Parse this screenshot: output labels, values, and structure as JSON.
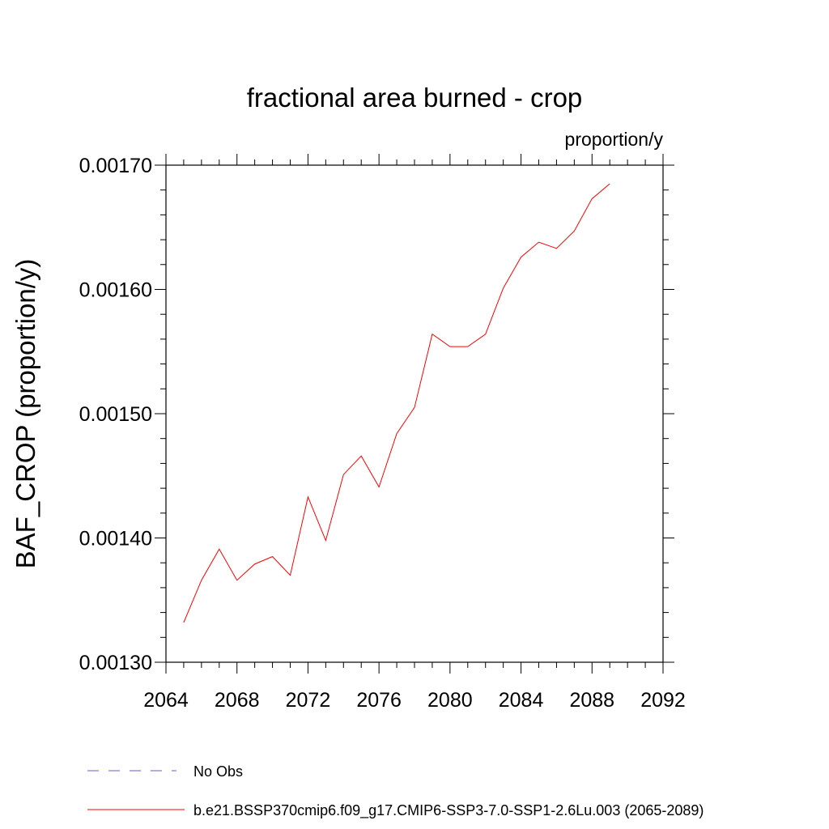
{
  "chart_data": {
    "type": "line",
    "title": "fractional area burned - crop",
    "units_label": "proportion/y",
    "xlabel": "",
    "ylabel": "BAF_CROP  (proportion/y)",
    "xlim": [
      2064,
      2092
    ],
    "ylim": [
      0.0013,
      0.0017
    ],
    "x_ticks": [
      2064,
      2068,
      2072,
      2076,
      2080,
      2084,
      2088,
      2092
    ],
    "x_tick_labels": [
      "2064",
      "2068",
      "2072",
      "2076",
      "2080",
      "2084",
      "2088",
      "2092"
    ],
    "y_ticks": [
      0.0013,
      0.0014,
      0.0015,
      0.0016,
      0.0017
    ],
    "y_tick_labels": [
      "0.00130",
      "0.00140",
      "0.00150",
      "0.00160",
      "0.00170"
    ],
    "grid": false,
    "series": [
      {
        "name": "b.e21.BSSP370cmip6.f09_g17.CMIP6-SSP3-7.0-SSP1-2.6Lu.003 (2065-2089)",
        "color": "#ff0000",
        "style": "solid",
        "x": [
          2065,
          2066,
          2067,
          2068,
          2069,
          2070,
          2071,
          2072,
          2073,
          2074,
          2075,
          2076,
          2077,
          2078,
          2079,
          2080,
          2081,
          2082,
          2083,
          2084,
          2085,
          2086,
          2087,
          2088,
          2089
        ],
        "values": [
          0.001332,
          0.001366,
          0.001391,
          0.001366,
          0.001379,
          0.001385,
          0.00137,
          0.001433,
          0.001398,
          0.001451,
          0.001466,
          0.001441,
          0.001484,
          0.001505,
          0.001564,
          0.001554,
          0.001554,
          0.001564,
          0.001601,
          0.001626,
          0.001638,
          0.001633,
          0.001647,
          0.001673,
          0.001685
        ]
      }
    ],
    "legend": [
      {
        "label": "No Obs",
        "color": "#6a5acd",
        "style": "dashed"
      },
      {
        "label": "b.e21.BSSP370cmip6.f09_g17.CMIP6-SSP3-7.0-SSP1-2.6Lu.003 (2065-2089)",
        "color": "#ff0000",
        "style": "solid"
      }
    ]
  }
}
